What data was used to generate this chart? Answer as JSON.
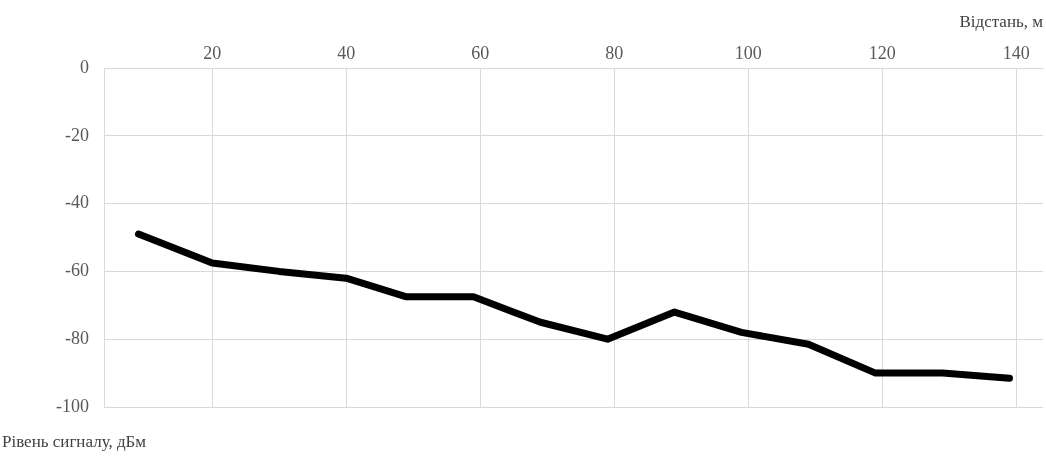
{
  "chart_data": {
    "type": "line",
    "xlabel": "Відстань, м",
    "ylabel": "Рівень сигналу, дБм",
    "x": [
      9,
      20,
      30,
      40,
      49,
      59,
      69,
      79,
      89,
      99,
      109,
      119,
      129,
      139
    ],
    "series": [
      {
        "color": "#000000",
        "values": [
          -49,
          -57.5,
          -60,
          -62,
          -67.5,
          -67.5,
          -75,
          -80,
          -72,
          -78,
          -81.5,
          -90,
          -90,
          -91.5
        ]
      }
    ],
    "xlim": [
      4,
      144
    ],
    "xticks": [
      20,
      40,
      60,
      80,
      100,
      120,
      140
    ],
    "ylim": [
      -100,
      0
    ],
    "yticks": [
      0,
      -20,
      -40,
      -60,
      -80,
      -100
    ],
    "grid": true,
    "legend": false,
    "marker": "none",
    "line_style": "solid"
  }
}
